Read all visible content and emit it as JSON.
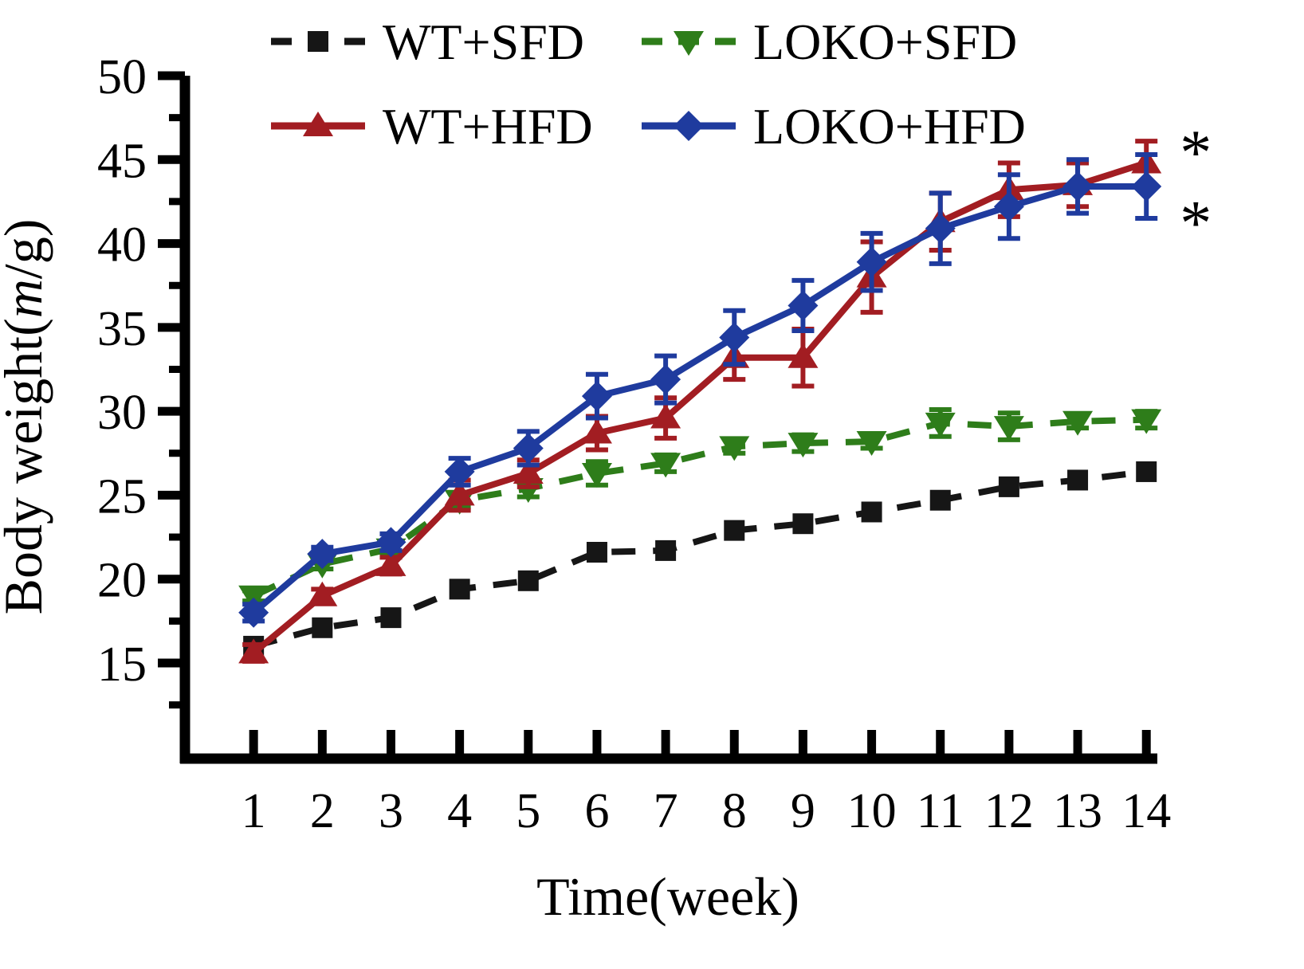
{
  "chart_data": {
    "type": "line",
    "title": "",
    "xlabel": "Time(week)",
    "ylabel": "Body weight(m/g)",
    "ylabel_parts": {
      "pre": "Body weight(",
      "italic": "m",
      "post": "/g)"
    },
    "x": [
      1,
      2,
      3,
      4,
      5,
      6,
      7,
      8,
      9,
      10,
      11,
      12,
      13,
      14
    ],
    "xlim": [
      0,
      14.16
    ],
    "ylim": [
      9.3,
      50
    ],
    "yticks": [
      15,
      20,
      25,
      30,
      35,
      40,
      45,
      50
    ],
    "yminor_start": 12.5,
    "yminor_step": 5,
    "grid": false,
    "legend_position": "top",
    "axis_color": "#000000",
    "series": [
      {
        "name": "WT+SFD",
        "color": "#161616",
        "marker": "square",
        "line": "dashed",
        "values": [
          16.0,
          17.1,
          17.7,
          19.4,
          19.9,
          21.6,
          21.7,
          22.9,
          23.3,
          24.0,
          24.7,
          25.5,
          25.9,
          26.4
        ],
        "errors": [
          0,
          0,
          0,
          0,
          0,
          0,
          0,
          0,
          0,
          0,
          0,
          0,
          0,
          0
        ]
      },
      {
        "name": "LOKO+SFD",
        "color": "#2e7d1a",
        "marker": "triangle-down",
        "line": "dashed",
        "values": [
          19.0,
          20.9,
          21.8,
          24.7,
          25.4,
          26.3,
          26.9,
          27.9,
          28.1,
          28.2,
          29.3,
          29.1,
          29.4,
          29.5
        ],
        "errors": [
          0.3,
          0.3,
          0.3,
          0.4,
          0.5,
          0.7,
          0.5,
          0.4,
          0.5,
          0.4,
          0.8,
          0.8,
          0.4,
          0.5
        ]
      },
      {
        "name": "WT+HFD",
        "color": "#a21d22",
        "marker": "triangle-up",
        "line": "solid",
        "values": [
          15.6,
          19.0,
          20.8,
          25.0,
          26.3,
          28.7,
          29.6,
          33.2,
          33.2,
          38.0,
          41.3,
          43.2,
          43.5,
          44.8
        ],
        "errors": [
          0.5,
          0.4,
          0.5,
          0.9,
          0.8,
          1.0,
          1.2,
          1.3,
          1.7,
          2.1,
          1.7,
          1.6,
          1.3,
          1.3
        ]
      },
      {
        "name": "LOKO+HFD",
        "color": "#1f3b9e",
        "marker": "diamond",
        "line": "solid",
        "values": [
          18.0,
          21.5,
          22.2,
          26.4,
          27.8,
          30.9,
          31.9,
          34.4,
          36.3,
          38.9,
          40.9,
          42.2,
          43.4,
          43.4
        ],
        "errors": [
          0.5,
          0.4,
          0.5,
          0.8,
          1.0,
          1.3,
          1.4,
          1.6,
          1.5,
          1.7,
          2.1,
          1.9,
          1.6,
          1.9
        ]
      }
    ],
    "legend_entries": [
      "WT+SFD",
      "LOKO+SFD",
      "WT+HFD",
      "LOKO+HFD"
    ],
    "annotations": [
      {
        "text": "*",
        "x": 14.72,
        "y": 45.4
      },
      {
        "text": "*",
        "x": 14.72,
        "y": 41.2
      }
    ]
  }
}
